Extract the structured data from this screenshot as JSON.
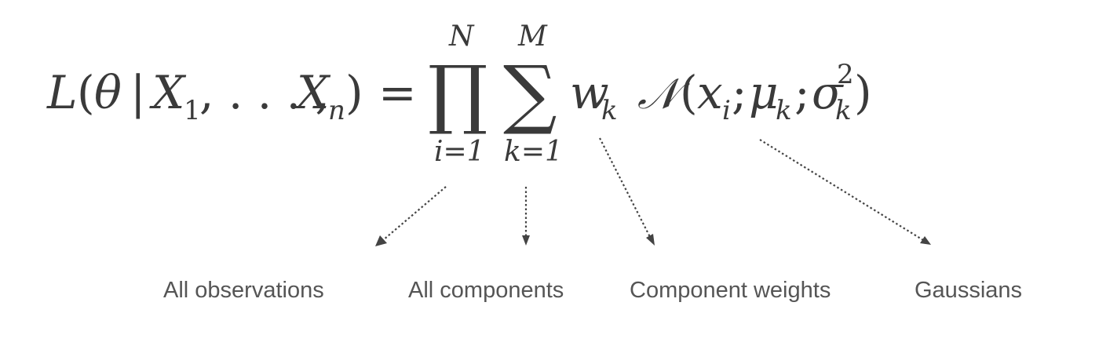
{
  "formula": {
    "lhs_L": "L",
    "lhs_open": "(",
    "theta": "θ",
    "bar": "|",
    "X1_base": "X",
    "X1_sub": "1",
    "comma_dots": ", . . . ,",
    "Xn_base": "X",
    "Xn_sub": "n",
    "lhs_close": ")",
    "equals": "=",
    "product_symbol": "∏",
    "product_upper": "N",
    "product_lower": "i=1",
    "sum_symbol": "∑",
    "sum_upper": "M",
    "sum_lower": "k=1",
    "weight_base": "w",
    "weight_sub": "k",
    "normal_symbol": "𝒩",
    "normal_open": "(",
    "x_base": "x",
    "x_sub": "i",
    "semicolon": ";",
    "mu_base": "μ",
    "mu_sub": "k",
    "sigma_base": "σ",
    "sigma_sup": "2",
    "sigma_sub": "k",
    "normal_close": ")"
  },
  "annotations": [
    {
      "id": "observations",
      "label": "All observations"
    },
    {
      "id": "components",
      "label": "All components"
    },
    {
      "id": "weights",
      "label": "Component weights"
    },
    {
      "id": "gaussians",
      "label": "Gaussians"
    }
  ],
  "colors": {
    "text": "#3a3a3a",
    "label": "#555555",
    "arrow": "#444444",
    "background": "#ffffff"
  }
}
